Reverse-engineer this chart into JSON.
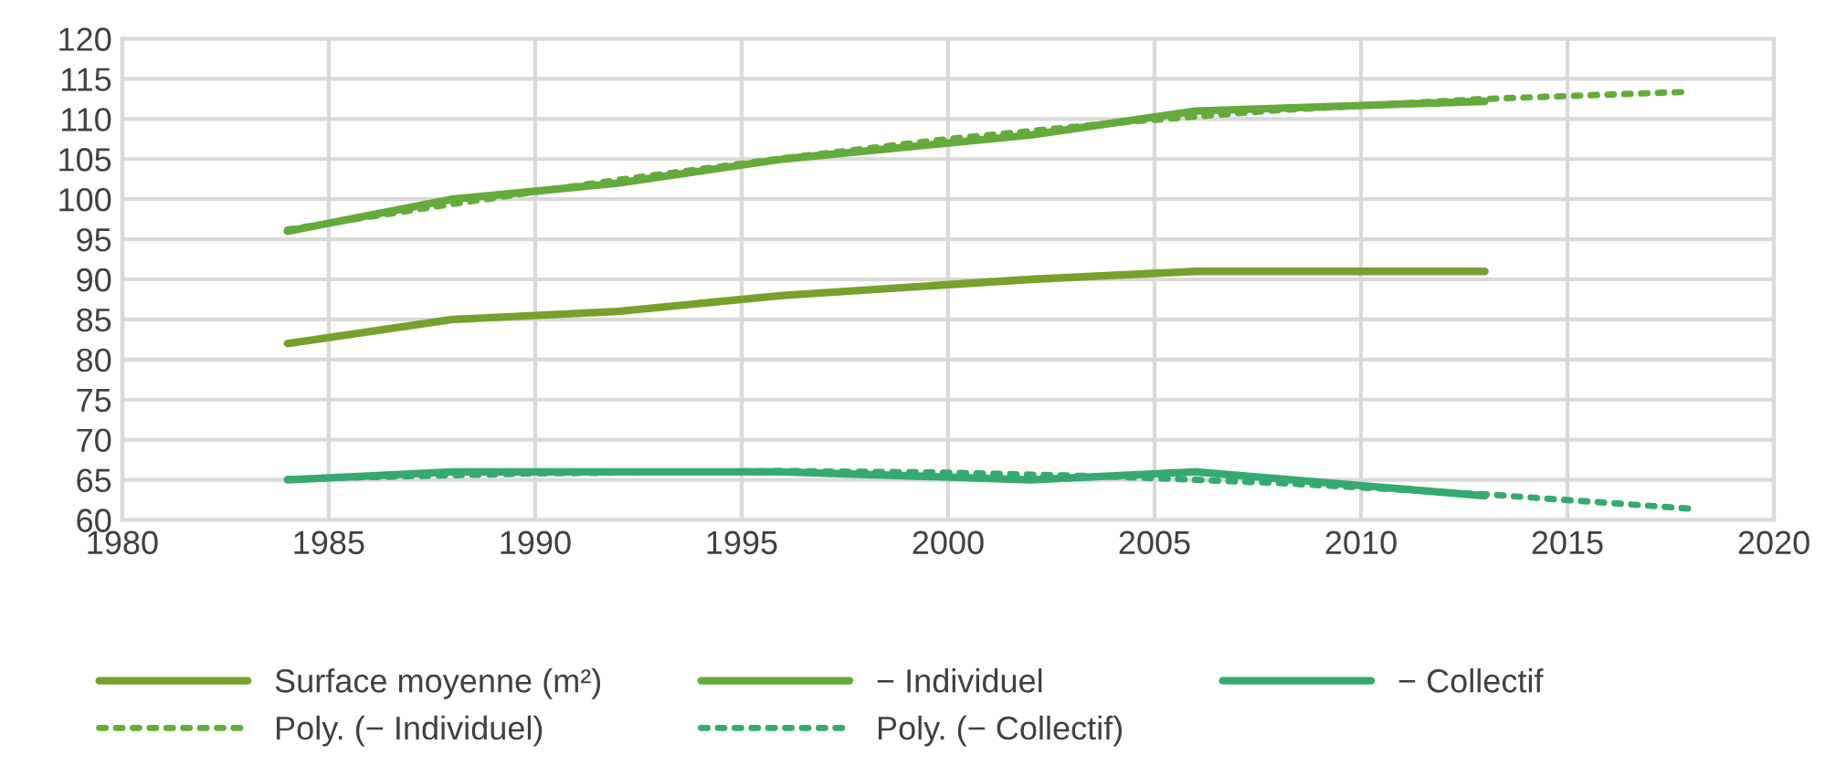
{
  "chart_data": {
    "type": "line",
    "x": [
      1984,
      1988,
      1992,
      1996,
      2002,
      2006,
      2013
    ],
    "series": [
      {
        "name": "Surface moyenne (m²)",
        "color": "#76a12a",
        "values": [
          82,
          85,
          86,
          88,
          90,
          91,
          91
        ]
      },
      {
        "name": "− Individuel",
        "color": "#63ab3a",
        "values": [
          96,
          100,
          102,
          105,
          108,
          111,
          112.2
        ]
      },
      {
        "name": "− Collectif",
        "color": "#35aa70",
        "values": [
          65,
          66,
          66,
          66,
          65,
          66,
          63
        ]
      },
      {
        "name": "Poly. (− Individuel)",
        "color": "#63ab3a",
        "line_style": "dotted",
        "x": [
          1984,
          1988,
          1992,
          1996,
          2000,
          2004,
          2008,
          2013,
          2018
        ],
        "values": [
          96.2,
          99.4,
          102.4,
          105.1,
          107.5,
          109.5,
          111.1,
          112.5,
          113.4
        ]
      },
      {
        "name": "Poly. (− Collectif)",
        "color": "#35aa70",
        "line_style": "dotted",
        "x": [
          1984,
          1990,
          1996,
          2000,
          2004,
          2008,
          2013,
          2018
        ],
        "values": [
          65.1,
          65.8,
          66.1,
          65.9,
          65.4,
          64.6,
          63.2,
          61.4
        ]
      }
    ],
    "xlim": [
      1980,
      2020
    ],
    "xticks": [
      1980,
      1985,
      1990,
      1995,
      2000,
      2005,
      2010,
      2015,
      2020
    ],
    "ylim": [
      60,
      120
    ],
    "yticks": [
      60,
      65,
      70,
      75,
      80,
      85,
      90,
      95,
      100,
      105,
      110,
      115,
      120
    ],
    "grid": true,
    "legend": "bottom",
    "line_style": "solid",
    "marker": "none"
  }
}
